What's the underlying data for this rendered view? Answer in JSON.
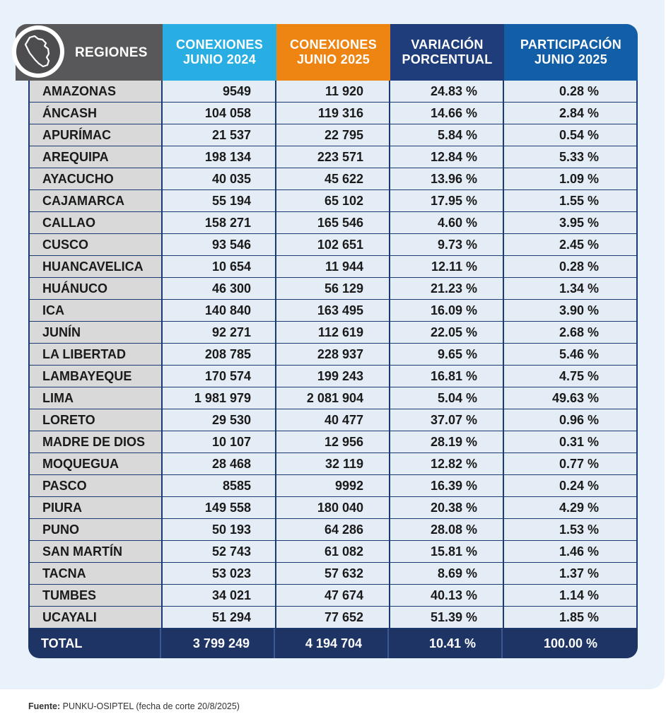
{
  "headers": {
    "regiones": "REGIONES",
    "col1": "CONEXIONES\nJUNIO 2024",
    "col2": "CONEXIONES\nJUNIO 2025",
    "col3": "VARIACIÓN\nPORCENTUAL",
    "col4": "PARTICIPACIÓN\nJUNIO 2025"
  },
  "map_icon": "peru-map-icon",
  "colors": {
    "regiones_header": "#58585a",
    "col1_header": "#28aee3",
    "col2_header": "#ee8412",
    "col3_header": "#1e3d7a",
    "col4_header": "#125ea7",
    "total_row": "#1d3465"
  },
  "rows": [
    {
      "region": "AMAZONAS",
      "c2024": "9549",
      "c2025": "11 920",
      "var": "24.83 %",
      "part": "0.28 %"
    },
    {
      "region": "ÁNCASH",
      "c2024": "104 058",
      "c2025": "119 316",
      "var": "14.66 %",
      "part": "2.84 %"
    },
    {
      "region": "APURÍMAC",
      "c2024": "21 537",
      "c2025": "22 795",
      "var": "5.84 %",
      "part": "0.54 %"
    },
    {
      "region": "AREQUIPA",
      "c2024": "198 134",
      "c2025": "223 571",
      "var": "12.84 %",
      "part": "5.33 %"
    },
    {
      "region": "AYACUCHO",
      "c2024": "40 035",
      "c2025": "45 622",
      "var": "13.96 %",
      "part": "1.09 %"
    },
    {
      "region": "CAJAMARCA",
      "c2024": "55 194",
      "c2025": "65 102",
      "var": "17.95 %",
      "part": "1.55 %"
    },
    {
      "region": "CALLAO",
      "c2024": "158 271",
      "c2025": "165 546",
      "var": "4.60 %",
      "part": "3.95 %"
    },
    {
      "region": "CUSCO",
      "c2024": "93 546",
      "c2025": "102 651",
      "var": "9.73 %",
      "part": "2.45 %"
    },
    {
      "region": "HUANCAVELICA",
      "c2024": "10 654",
      "c2025": "11 944",
      "var": "12.11 %",
      "part": "0.28 %"
    },
    {
      "region": "HUÁNUCO",
      "c2024": "46 300",
      "c2025": "56 129",
      "var": "21.23 %",
      "part": "1.34 %"
    },
    {
      "region": "ICA",
      "c2024": "140 840",
      "c2025": "163 495",
      "var": "16.09 %",
      "part": "3.90 %"
    },
    {
      "region": "JUNÍN",
      "c2024": "92 271",
      "c2025": "112 619",
      "var": "22.05 %",
      "part": "2.68 %"
    },
    {
      "region": "LA LIBERTAD",
      "c2024": "208 785",
      "c2025": "228 937",
      "var": "9.65 %",
      "part": "5.46 %"
    },
    {
      "region": "LAMBAYEQUE",
      "c2024": "170 574",
      "c2025": "199 243",
      "var": "16.81 %",
      "part": "4.75 %"
    },
    {
      "region": "LIMA",
      "c2024": "1 981 979",
      "c2025": "2 081 904",
      "var": "5.04 %",
      "part": "49.63 %"
    },
    {
      "region": "LORETO",
      "c2024": "29 530",
      "c2025": "40 477",
      "var": "37.07 %",
      "part": "0.96 %"
    },
    {
      "region": "MADRE DE DIOS",
      "c2024": "10 107",
      "c2025": "12 956",
      "var": "28.19 %",
      "part": "0.31 %"
    },
    {
      "region": "MOQUEGUA",
      "c2024": "28 468",
      "c2025": "32 119",
      "var": "12.82 %",
      "part": "0.77 %"
    },
    {
      "region": "PASCO",
      "c2024": "8585",
      "c2025": "9992",
      "var": "16.39 %",
      "part": "0.24 %"
    },
    {
      "region": "PIURA",
      "c2024": "149 558",
      "c2025": "180 040",
      "var": "20.38 %",
      "part": "4.29 %"
    },
    {
      "region": "PUNO",
      "c2024": "50 193",
      "c2025": "64 286",
      "var": "28.08 %",
      "part": "1.53 %"
    },
    {
      "region": "SAN MARTÍN",
      "c2024": "52 743",
      "c2025": "61 082",
      "var": "15.81 %",
      "part": "1.46 %"
    },
    {
      "region": "TACNA",
      "c2024": "53 023",
      "c2025": "57 632",
      "var": "8.69 %",
      "part": "1.37 %"
    },
    {
      "region": "TUMBES",
      "c2024": "34 021",
      "c2025": "47 674",
      "var": "40.13 %",
      "part": "1.14 %"
    },
    {
      "region": "UCAYALI",
      "c2024": "51 294",
      "c2025": "77 652",
      "var": "51.39 %",
      "part": "1.85 %"
    }
  ],
  "total": {
    "region": "TOTAL",
    "c2024": "3 799 249",
    "c2025": "4 194 704",
    "var": "10.41 %",
    "part": "100.00 %"
  },
  "footer": {
    "label": "Fuente:",
    "text": " PUNKU-OSIPTEL (fecha de corte 20/8/2025)"
  }
}
